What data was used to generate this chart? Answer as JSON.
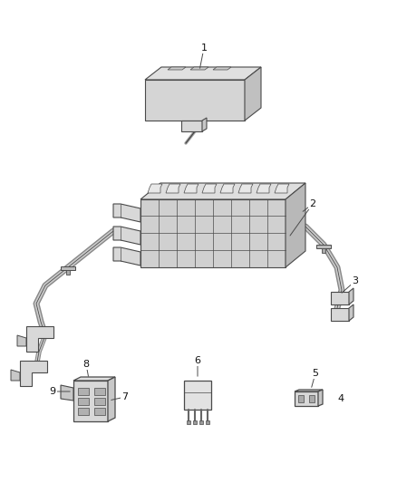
{
  "bg_color": "#ffffff",
  "line_color": "#4a4a4a",
  "label_color": "#222222",
  "fig_width": 4.38,
  "fig_height": 5.33,
  "dpi": 100,
  "component_fill": "#e8e8e8",
  "component_fill2": "#d8d8d8",
  "component_fill3": "#c8c8c8"
}
